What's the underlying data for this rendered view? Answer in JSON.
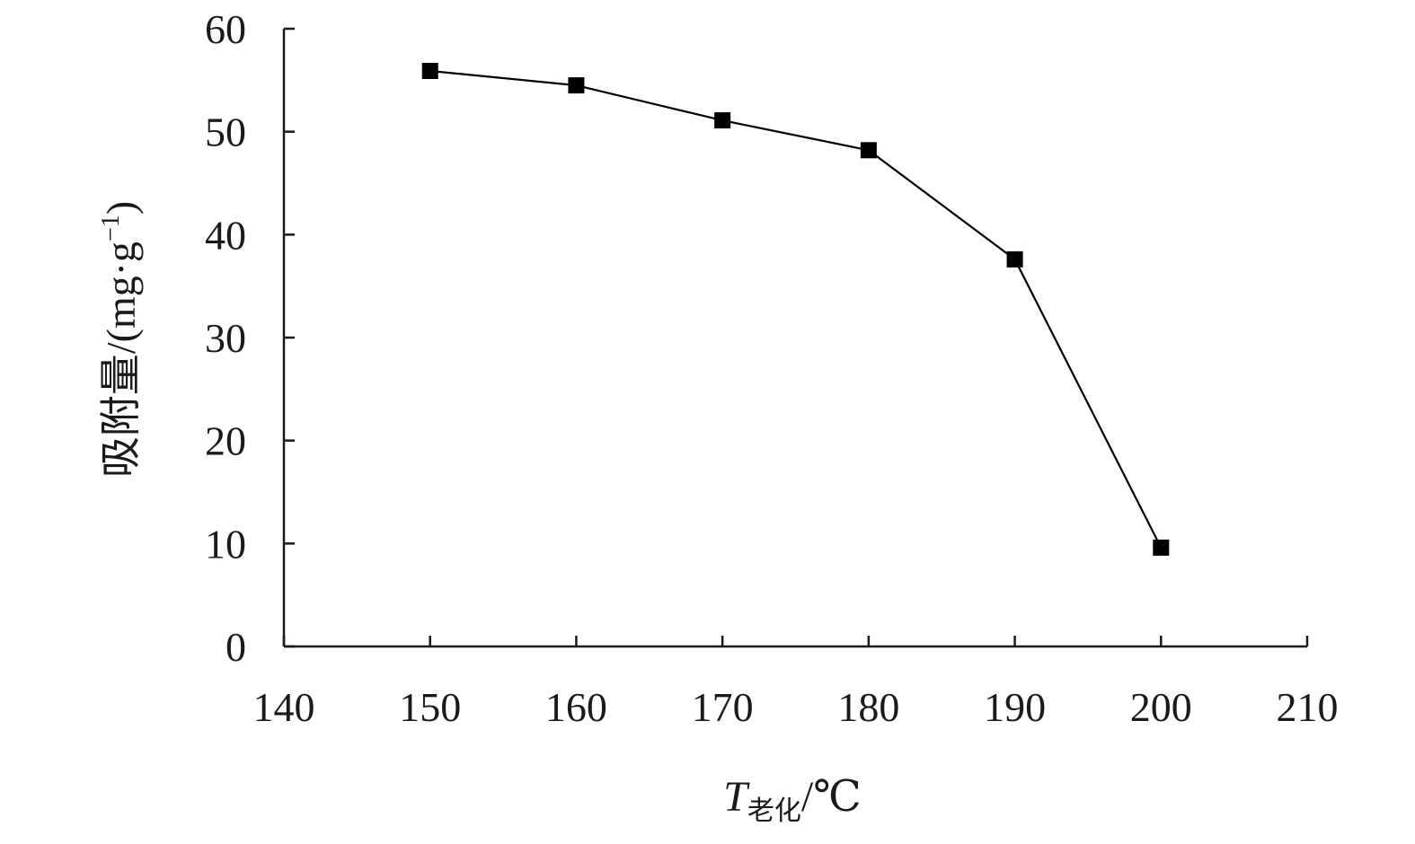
{
  "chart_data": {
    "type": "line",
    "title": "",
    "xlabel": {
      "symbol": "T",
      "subscript": "老化",
      "unit": "/℃"
    },
    "ylabel": {
      "main": "吸附量/(mg·g",
      "exponent": "−1",
      "close": ")"
    },
    "xlim": [
      140,
      210
    ],
    "ylim": [
      0,
      60
    ],
    "xticks": [
      "140",
      "150",
      "160",
      "170",
      "180",
      "190",
      "200",
      "210"
    ],
    "yticks": [
      "0",
      "10",
      "20",
      "30",
      "40",
      "50",
      "60"
    ],
    "grid": false,
    "legend": "none",
    "series": [
      {
        "marker": "square",
        "color": "#000000",
        "x": [
          150,
          160,
          170,
          180,
          190,
          200
        ],
        "y": [
          55.9,
          54.5,
          51.1,
          48.2,
          37.6,
          9.6
        ]
      }
    ]
  }
}
